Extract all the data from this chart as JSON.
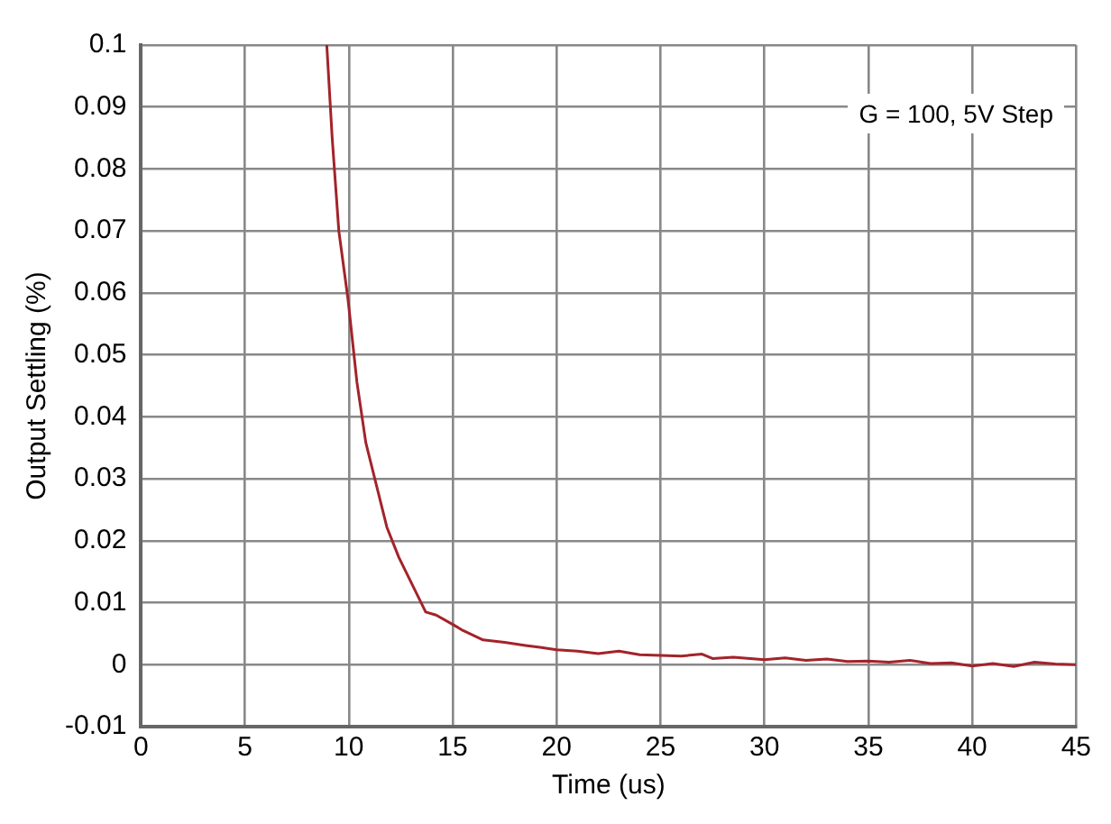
{
  "chart_data": {
    "type": "line",
    "xlabel": "Time (us)",
    "ylabel": "Output Settling (%)",
    "annotations": [
      "G = 100, 5V Step"
    ],
    "series": [
      {
        "color": "#a3232a",
        "x": [
          8.94,
          9.2,
          9.52,
          9.96,
          10.39,
          10.82,
          11.4,
          11.83,
          12.41,
          13.13,
          13.7,
          14.2,
          15.0,
          15.5,
          16.46,
          17.5,
          18.5,
          19.2,
          20,
          21,
          22,
          23,
          24,
          25,
          26,
          27,
          27.5,
          28.5,
          30,
          31,
          32,
          33,
          34,
          35,
          36,
          37,
          38,
          39,
          40,
          41,
          42,
          43,
          44,
          45
        ],
        "values": [
          0.1,
          0.085,
          0.07,
          0.059,
          0.0456,
          0.0358,
          0.028,
          0.0222,
          0.0173,
          0.0124,
          0.0085,
          0.008,
          0.0065,
          0.0055,
          0.004,
          0.0036,
          0.0031,
          0.0028,
          0.0024,
          0.0022,
          0.0018,
          0.0022,
          0.0016,
          0.0015,
          0.0014,
          0.0017,
          0.001,
          0.0012,
          0.0008,
          0.0011,
          0.0007,
          0.0009,
          0.0005,
          0.0006,
          0.0004,
          0.0007,
          0.0002,
          0.0003,
          -0.0002,
          0.0002,
          -0.0003,
          0.0004,
          0.0001,
          0
        ]
      }
    ],
    "xlim": [
      0,
      45
    ],
    "xticks": [
      0,
      5,
      10,
      15,
      20,
      25,
      30,
      35,
      40,
      45
    ],
    "ylim": [
      -0.01,
      0.1
    ],
    "yticks": [
      -0.01,
      0,
      0.01,
      0.02,
      0.03,
      0.04,
      0.05,
      0.06,
      0.07,
      0.08,
      0.09,
      0.1
    ],
    "grid": true,
    "line_style": "solid",
    "marker": "none",
    "legend": false
  }
}
